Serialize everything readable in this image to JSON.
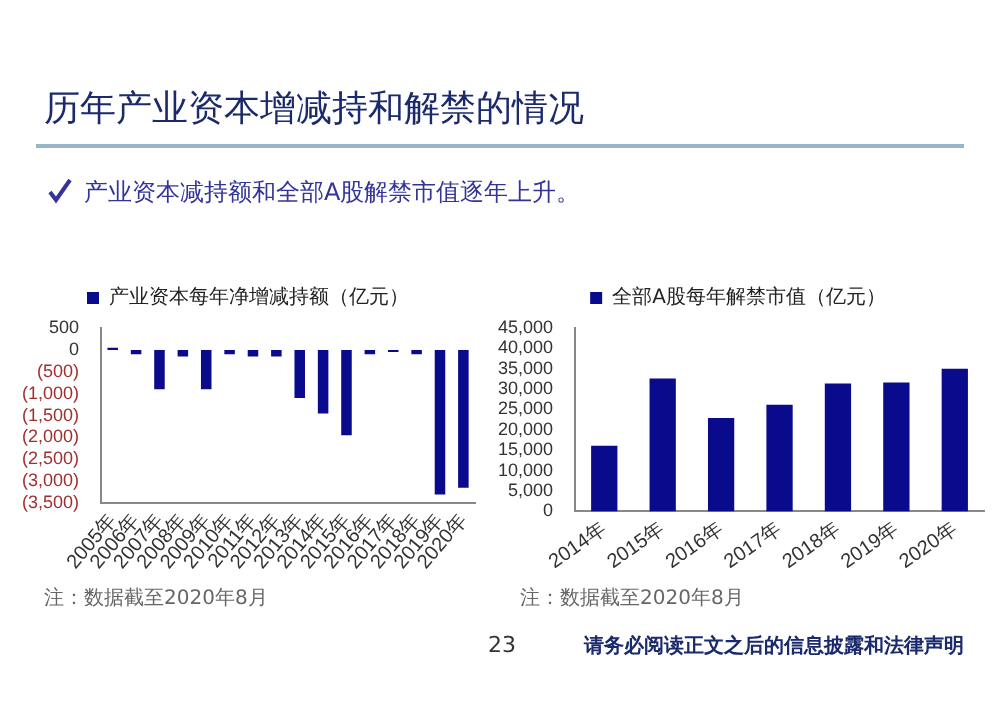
{
  "chart_data": [
    {
      "type": "bar",
      "title": "历年产业资本增减持和解禁的情况",
      "subtitle": "产业资本减持额和全部A股解禁市值逐年上升。",
      "categories": [
        "2005年",
        "2006年",
        "2007年",
        "2008年",
        "2009年",
        "2010年",
        "2011年",
        "2012年",
        "2013年",
        "2014年",
        "2015年",
        "2016年",
        "2017年",
        "2018年",
        "2019年",
        "2020年"
      ],
      "series": [
        {
          "name": "产业资本每年净增减持额（亿元）",
          "color": "#0a0a8c",
          "values": [
            50,
            -100,
            -900,
            -150,
            -900,
            -100,
            -150,
            -150,
            -1100,
            -1450,
            -1950,
            -100,
            -50,
            -100,
            -3300,
            -3150
          ]
        }
      ],
      "ylim": [
        -3500,
        500
      ],
      "yticks": [
        500,
        0,
        {
          "value": -500,
          "label": "(500)"
        },
        {
          "value": -1000,
          "label": "(1,000)"
        },
        {
          "value": -1500,
          "label": "(1,500)"
        },
        {
          "value": -2000,
          "label": "(2,000)"
        },
        {
          "value": -2500,
          "label": "(2,500)"
        },
        {
          "value": -3000,
          "label": "(3,000)"
        },
        {
          "value": -3500,
          "label": "(3,500)"
        }
      ],
      "grid": false,
      "legend": "top",
      "annotations": [
        "注：数据截至2020年8月"
      ]
    },
    {
      "type": "bar",
      "categories": [
        "2014年",
        "2015年",
        "2016年",
        "2017年",
        "2018年",
        "2019年",
        "2020年"
      ],
      "series": [
        {
          "name": "全部A股每年解禁市值（亿元）",
          "color": "#0a0a8c",
          "values": [
            16100,
            32600,
            22900,
            26200,
            31400,
            31600,
            35000
          ]
        }
      ],
      "ylim": [
        0,
        45000
      ],
      "yticks": [
        {
          "value": 0,
          "label": "0"
        },
        {
          "value": 5000,
          "label": "5,000"
        },
        {
          "value": 10000,
          "label": "10,000"
        },
        {
          "value": 15000,
          "label": "15,000"
        },
        {
          "value": 20000,
          "label": "20,000"
        },
        {
          "value": 25000,
          "label": "25,000"
        },
        {
          "value": 30000,
          "label": "30,000"
        },
        {
          "value": 35000,
          "label": "35,000"
        },
        {
          "value": 40000,
          "label": "40,000"
        },
        {
          "value": 45000,
          "label": "45,000"
        }
      ],
      "grid": false,
      "legend": "top",
      "annotations": [
        "注：数据截至2020年8月",
        "23",
        "请务必阅读正文之后的信息披露和法律声明"
      ]
    }
  ]
}
